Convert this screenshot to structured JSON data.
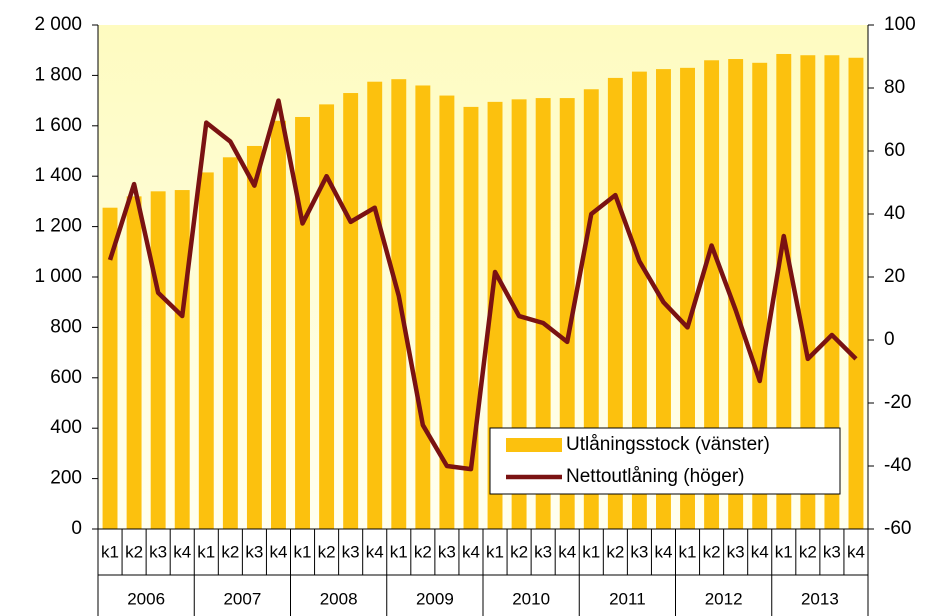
{
  "chart_data": {
    "type": "bar-line",
    "categories": [
      "k1",
      "k2",
      "k3",
      "k4",
      "k1",
      "k2",
      "k3",
      "k4",
      "k1",
      "k2",
      "k3",
      "k4",
      "k1",
      "k2",
      "k3",
      "k4",
      "k1",
      "k2",
      "k3",
      "k4",
      "k1",
      "k2",
      "k3",
      "k4",
      "k1",
      "k2",
      "k3",
      "k4",
      "k1",
      "k2",
      "k3",
      "k4"
    ],
    "years": [
      "2006",
      "2007",
      "2008",
      "2009",
      "2010",
      "2011",
      "2012",
      "2013"
    ],
    "series": [
      {
        "name": "Utlåningsstock (vänster)",
        "color": "#fcc10e",
        "type": "bar",
        "values": [
          1275,
          1320,
          1340,
          1345,
          1415,
          1475,
          1520,
          1620,
          1635,
          1685,
          1730,
          1775,
          1785,
          1760,
          1720,
          1675,
          1695,
          1705,
          1710,
          1710,
          1745,
          1790,
          1815,
          1825,
          1830,
          1860,
          1865,
          1850,
          1885,
          1880,
          1880,
          1870
        ]
      },
      {
        "name": "Nettoutlåning (höger)",
        "color": "#7a1212",
        "type": "line",
        "axis": "y2",
        "values": [
          25.4,
          49.5,
          15,
          7.6,
          69,
          63,
          49,
          76,
          37,
          52,
          37.5,
          42,
          14,
          -27,
          -40,
          -41,
          21.6,
          7.6,
          5.4,
          -0.6,
          40,
          46,
          25,
          12,
          4,
          30,
          9.5,
          -13,
          33,
          -6,
          1.6,
          -6
        ]
      }
    ],
    "ylim": [
      0,
      2000
    ],
    "yticks": [
      0,
      200,
      400,
      600,
      800,
      {
        "value": 1000,
        "label": "1 000"
      },
      {
        "value": 1200,
        "label": "1 200"
      },
      {
        "value": 1400,
        "label": "1 400"
      },
      {
        "value": 1600,
        "label": "1 600"
      },
      {
        "value": 1800,
        "label": "1 800"
      },
      {
        "value": 2000,
        "label": "2 000"
      }
    ],
    "y2lim": [
      -60,
      100
    ],
    "y2ticks": [
      -60,
      -40,
      -20,
      0,
      20,
      40,
      60,
      80,
      100
    ],
    "legend": "lower right"
  }
}
